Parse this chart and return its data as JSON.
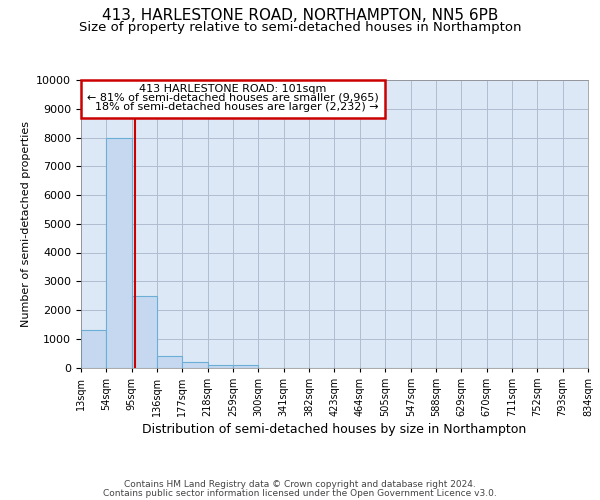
{
  "title": "413, HARLESTONE ROAD, NORTHAMPTON, NN5 6PB",
  "subtitle": "Size of property relative to semi-detached houses in Northampton",
  "xlabel": "Distribution of semi-detached houses by size in Northampton",
  "ylabel": "Number of semi-detached properties",
  "footer_line1": "Contains HM Land Registry data © Crown copyright and database right 2024.",
  "footer_line2": "Contains public sector information licensed under the Open Government Licence v3.0.",
  "bar_edges": [
    13,
    54,
    95,
    136,
    177,
    218,
    259,
    300,
    341,
    382,
    423,
    464,
    505,
    547,
    588,
    629,
    670,
    711,
    752,
    793,
    834
  ],
  "bar_heights": [
    1300,
    8000,
    2500,
    400,
    175,
    100,
    75,
    0,
    0,
    0,
    0,
    0,
    0,
    0,
    0,
    0,
    0,
    0,
    0,
    0
  ],
  "bar_color": "#c5d8f0",
  "bar_edgecolor": "#6baed6",
  "property_size": 101,
  "property_size_label": "413 HARLESTONE ROAD: 101sqm",
  "pct_smaller": 81,
  "n_smaller": 9965,
  "pct_larger": 18,
  "n_larger": 2232,
  "annotation_box_color": "#cc0000",
  "vline_color": "#cc0000",
  "ylim": [
    0,
    10000
  ],
  "yticks": [
    0,
    1000,
    2000,
    3000,
    4000,
    5000,
    6000,
    7000,
    8000,
    9000,
    10000
  ],
  "grid_color": "#b0bdd0",
  "bg_color": "#ffffff",
  "plot_bg_color": "#dce8f5",
  "title_fontsize": 11,
  "subtitle_fontsize": 9.5
}
